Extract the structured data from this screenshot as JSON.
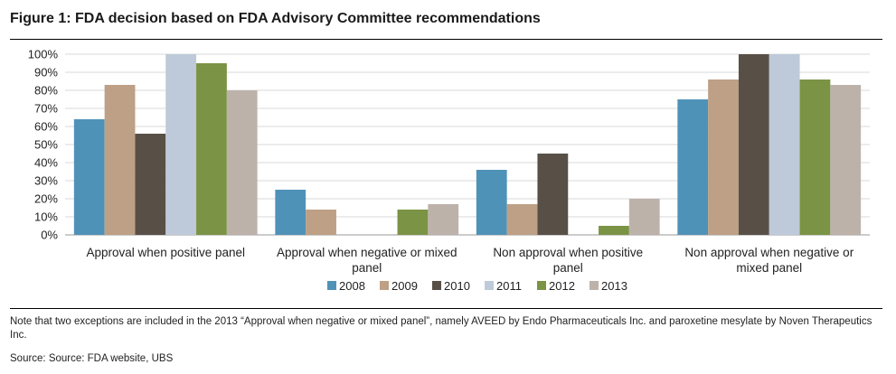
{
  "figure": {
    "title": "Figure 1: FDA decision based on FDA Advisory Committee recommendations",
    "note": "Note that two exceptions are included in the 2013 “Approval when negative or mixed panel”, namely AVEED by Endo Pharmaceuticals Inc. and paroxetine mesylate by Noven Therapeutics Inc.",
    "source": "Source:  Source: FDA website, UBS"
  },
  "chart_data": {
    "type": "bar",
    "title": "Figure 1: FDA decision based on FDA Advisory Committee recommendations",
    "categories": [
      [
        "Approval when positive panel"
      ],
      [
        "Approval when negative or mixed",
        "panel"
      ],
      [
        "Non approval when positive",
        "panel"
      ],
      [
        "Non approval when negative or",
        "mixed panel"
      ]
    ],
    "series": [
      {
        "name": "2008",
        "color": "#4f92b8",
        "values": [
          64,
          25,
          36,
          75
        ]
      },
      {
        "name": "2009",
        "color": "#bda085",
        "values": [
          83,
          14,
          17,
          86
        ]
      },
      {
        "name": "2010",
        "color": "#584f47",
        "values": [
          56,
          0,
          45,
          100
        ]
      },
      {
        "name": "2011",
        "color": "#bec9d9",
        "values": [
          100,
          0,
          0,
          100
        ]
      },
      {
        "name": "2012",
        "color": "#7b9344",
        "values": [
          95,
          14,
          5,
          86
        ]
      },
      {
        "name": "2013",
        "color": "#bdb2aa",
        "values": [
          80,
          17,
          20,
          83
        ]
      }
    ],
    "yticks": [
      "0%",
      "10%",
      "20%",
      "30%",
      "40%",
      "50%",
      "60%",
      "70%",
      "80%",
      "90%",
      "100%"
    ],
    "ylim": [
      0,
      100
    ],
    "xlabel": "",
    "ylabel": "",
    "grid": true,
    "legend": "bottom-center"
  }
}
